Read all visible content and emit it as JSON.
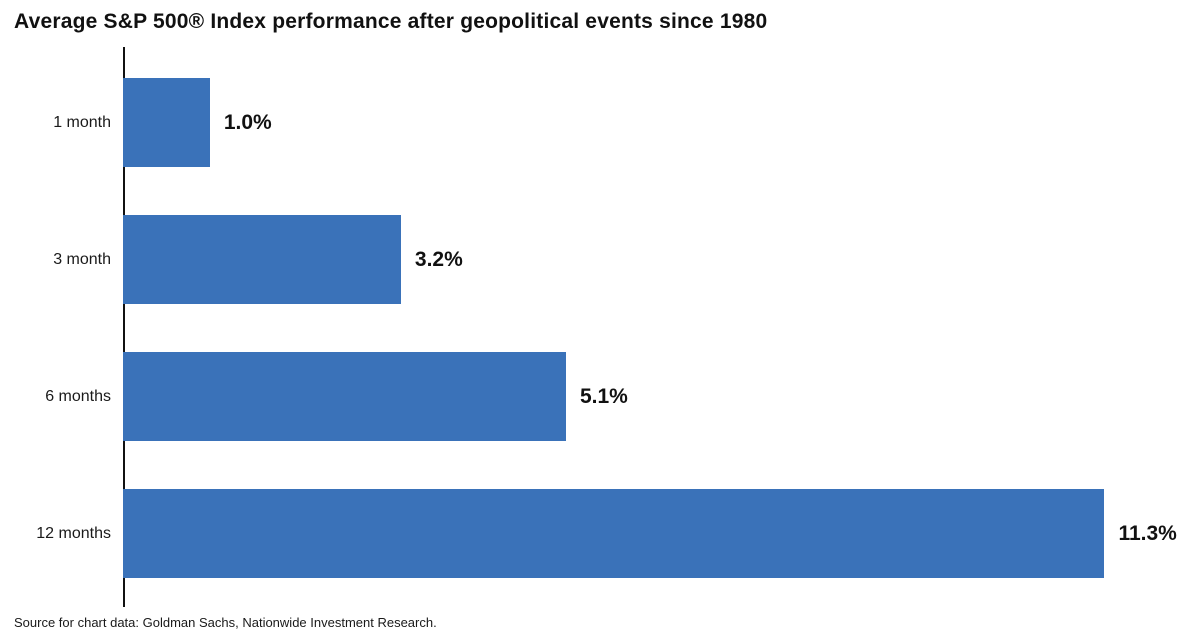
{
  "title": "Average S&P 500® Index performance after geopolitical events since 1980",
  "source": "Source for chart data: Goldman Sachs, Nationwide Investment Research.",
  "colors": {
    "bar": "#3A72B9",
    "axis": "#111111",
    "text": "#1a1a1a"
  },
  "chart_data": {
    "type": "bar",
    "orientation": "horizontal",
    "title": "Average S&P 500® Index performance after geopolitical events since 1980",
    "categories": [
      "1 month",
      "3 month",
      "6 months",
      "12 months"
    ],
    "values": [
      1.0,
      3.2,
      5.1,
      11.3
    ],
    "value_labels": [
      "1.0%",
      "3.2%",
      "5.1%",
      "11.3%"
    ],
    "xlabel": "",
    "ylabel": "",
    "xlim": [
      0,
      12.4
    ],
    "grid": false,
    "legend": "none",
    "source": "Source for chart data: Goldman Sachs, Nationwide Investment Research."
  }
}
